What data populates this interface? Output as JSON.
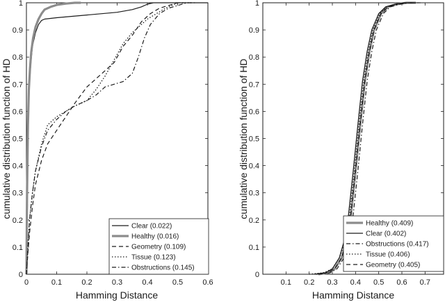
{
  "chart_data": [
    {
      "type": "line",
      "xlabel": "Hamming Distance",
      "ylabel": "cumulative distribution function of HD",
      "xlim": [
        0,
        0.6
      ],
      "ylim": [
        0,
        1
      ],
      "xticks": [
        "0",
        "0.1",
        "0.2",
        "0.3",
        "0.4",
        "0.5",
        "0.6"
      ],
      "yticks": [
        "0",
        "0.1",
        "0.2",
        "0.3",
        "0.4",
        "0.5",
        "0.6",
        "0.7",
        "0.8",
        "0.9",
        "1"
      ],
      "grid": false,
      "legend_position": "bottom-right",
      "series": [
        {
          "name": "Clear",
          "legend_value": "(0.022)",
          "style": "solid",
          "color": "#1a1a1a",
          "width": 1.2,
          "x": [
            0,
            0.003,
            0.006,
            0.01,
            0.015,
            0.02,
            0.03,
            0.04,
            0.05,
            0.06,
            0.1,
            0.2,
            0.3,
            0.35,
            0.38,
            0.4,
            0.42,
            0.45,
            0.6
          ],
          "y": [
            0,
            0.4,
            0.6,
            0.7,
            0.78,
            0.84,
            0.89,
            0.92,
            0.935,
            0.94,
            0.945,
            0.955,
            0.965,
            0.975,
            0.985,
            0.995,
            1.0,
            1.0,
            1.0
          ]
        },
        {
          "name": "Healthy",
          "legend_value": "(0.016)",
          "style": "solid",
          "color": "#8c8c8c",
          "width": 3.2,
          "x": [
            0,
            0.002,
            0.005,
            0.008,
            0.012,
            0.016,
            0.022,
            0.03,
            0.04,
            0.05,
            0.06,
            0.08,
            0.1,
            0.13,
            0.16,
            0.18
          ],
          "y": [
            0,
            0.3,
            0.55,
            0.68,
            0.76,
            0.82,
            0.87,
            0.91,
            0.94,
            0.96,
            0.975,
            0.985,
            0.992,
            0.997,
            1.0,
            1.0
          ]
        },
        {
          "name": "Geometry",
          "legend_value": "(0.109)",
          "style": "dashed",
          "color": "#1a1a1a",
          "width": 1.2,
          "x": [
            0,
            0.005,
            0.01,
            0.02,
            0.03,
            0.05,
            0.07,
            0.1,
            0.13,
            0.16,
            0.2,
            0.23,
            0.26,
            0.29,
            0.32,
            0.35,
            0.38,
            0.41,
            0.44,
            0.47,
            0.5,
            0.52
          ],
          "y": [
            0,
            0.08,
            0.15,
            0.25,
            0.33,
            0.42,
            0.48,
            0.53,
            0.58,
            0.63,
            0.69,
            0.72,
            0.75,
            0.78,
            0.84,
            0.88,
            0.93,
            0.96,
            0.98,
            0.99,
            1.0,
            1.0
          ]
        },
        {
          "name": "Tissue",
          "legend_value": "(0.123)",
          "style": "dotted",
          "color": "#1a1a1a",
          "width": 1.3,
          "x": [
            0,
            0.005,
            0.01,
            0.02,
            0.03,
            0.05,
            0.07,
            0.1,
            0.13,
            0.16,
            0.2,
            0.23,
            0.26,
            0.29,
            0.32,
            0.35,
            0.38,
            0.4,
            0.43,
            0.46,
            0.5,
            0.55
          ],
          "y": [
            0,
            0.1,
            0.2,
            0.3,
            0.38,
            0.48,
            0.55,
            0.58,
            0.6,
            0.62,
            0.64,
            0.68,
            0.73,
            0.79,
            0.85,
            0.89,
            0.92,
            0.94,
            0.96,
            0.98,
            1.0,
            1.0
          ]
        },
        {
          "name": "Obstructions",
          "legend_value": "(0.145)",
          "style": "dashdot",
          "color": "#1a1a1a",
          "width": 1.2,
          "x": [
            0,
            0.005,
            0.01,
            0.02,
            0.03,
            0.05,
            0.07,
            0.1,
            0.13,
            0.16,
            0.2,
            0.23,
            0.26,
            0.29,
            0.32,
            0.35,
            0.37,
            0.39,
            0.41,
            0.44,
            0.47,
            0.5,
            0.53,
            0.56
          ],
          "y": [
            0,
            0.1,
            0.2,
            0.3,
            0.38,
            0.47,
            0.53,
            0.57,
            0.6,
            0.62,
            0.64,
            0.66,
            0.69,
            0.7,
            0.71,
            0.74,
            0.8,
            0.87,
            0.92,
            0.96,
            0.98,
            0.99,
            1.0,
            1.0
          ]
        }
      ]
    },
    {
      "type": "line",
      "xlabel": "Hamming Distance",
      "ylabel": "cumulative distribution function of HD",
      "xlim": [
        0,
        0.78
      ],
      "ylim": [
        0,
        1
      ],
      "xticks": [
        "0.1",
        "0.2",
        "0.3",
        "0.4",
        "0.5",
        "0.6",
        "0.7"
      ],
      "yticks": [
        "0",
        "0.1",
        "0.2",
        "0.3",
        "0.4",
        "0.5",
        "0.6",
        "0.7",
        "0.8",
        "0.9",
        "1"
      ],
      "grid": false,
      "legend_position": "bottom-right",
      "series": [
        {
          "name": "Healthy",
          "legend_value": "(0.409)",
          "style": "solid",
          "color": "#8c8c8c",
          "width": 3.2,
          "x": [
            0.24,
            0.28,
            0.31,
            0.34,
            0.36,
            0.38,
            0.4,
            0.42,
            0.44,
            0.46,
            0.48,
            0.51,
            0.54,
            0.58,
            0.62,
            0.66
          ],
          "y": [
            0,
            0.005,
            0.02,
            0.06,
            0.12,
            0.22,
            0.38,
            0.55,
            0.71,
            0.82,
            0.9,
            0.96,
            0.985,
            0.995,
            1.0,
            1.0
          ]
        },
        {
          "name": "Clear",
          "legend_value": "(0.402)",
          "style": "solid",
          "color": "#1a1a1a",
          "width": 1.3,
          "x": [
            0.22,
            0.27,
            0.3,
            0.33,
            0.35,
            0.37,
            0.39,
            0.41,
            0.43,
            0.45,
            0.47,
            0.5,
            0.53,
            0.57,
            0.61,
            0.66
          ],
          "y": [
            0,
            0.005,
            0.02,
            0.06,
            0.12,
            0.22,
            0.38,
            0.55,
            0.71,
            0.82,
            0.9,
            0.96,
            0.985,
            0.995,
            1.0,
            1.0
          ]
        },
        {
          "name": "Obstructions",
          "legend_value": "(0.417)",
          "style": "dashdot",
          "color": "#1a1a1a",
          "width": 1.2,
          "x": [
            0.24,
            0.29,
            0.32,
            0.35,
            0.37,
            0.39,
            0.41,
            0.43,
            0.45,
            0.47,
            0.49,
            0.52,
            0.55,
            0.59,
            0.63,
            0.68
          ],
          "y": [
            0,
            0.005,
            0.02,
            0.06,
            0.12,
            0.22,
            0.38,
            0.55,
            0.71,
            0.82,
            0.9,
            0.96,
            0.985,
            0.995,
            1.0,
            1.0
          ]
        },
        {
          "name": "Tissue",
          "legend_value": "(0.406)",
          "style": "dotted",
          "color": "#1a1a1a",
          "width": 1.3,
          "x": [
            0.2,
            0.26,
            0.3,
            0.33,
            0.355,
            0.375,
            0.395,
            0.415,
            0.435,
            0.455,
            0.475,
            0.505,
            0.535,
            0.575,
            0.615,
            0.66
          ],
          "y": [
            0,
            0.005,
            0.02,
            0.06,
            0.12,
            0.22,
            0.38,
            0.55,
            0.71,
            0.82,
            0.9,
            0.96,
            0.985,
            0.995,
            1.0,
            1.0
          ]
        },
        {
          "name": "Geometry",
          "legend_value": "(0.405)",
          "style": "dashed",
          "color": "#1a1a1a",
          "width": 1.2,
          "x": [
            0.23,
            0.28,
            0.31,
            0.34,
            0.36,
            0.38,
            0.4,
            0.42,
            0.44,
            0.46,
            0.48,
            0.51,
            0.54,
            0.58,
            0.62,
            0.67
          ],
          "y": [
            0,
            0.005,
            0.02,
            0.06,
            0.12,
            0.22,
            0.38,
            0.55,
            0.71,
            0.82,
            0.9,
            0.96,
            0.985,
            0.995,
            1.0,
            1.0
          ]
        }
      ]
    }
  ]
}
